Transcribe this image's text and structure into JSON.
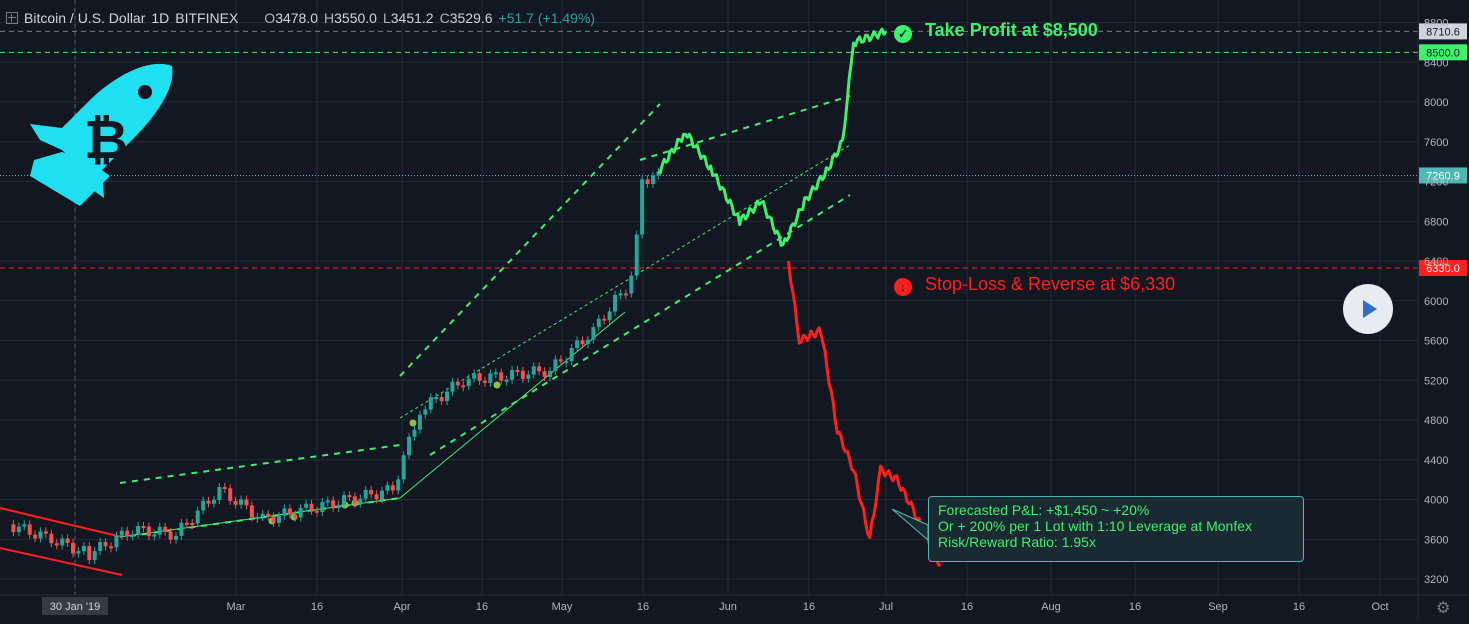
{
  "header": {
    "title": "Bitcoin / U.S. Dollar",
    "interval": "1D",
    "exchange": "BITFINEX",
    "o_label": "O",
    "o_value": "3478.0",
    "h_label": "H",
    "h_value": "3550.0",
    "l_label": "L",
    "l_value": "3451.2",
    "c_label": "C",
    "c_value": "3529.6",
    "change": "+51.7 (+1.49%)"
  },
  "annotations": {
    "take_profit": "Take Profit at $8,500",
    "stop_loss": "Stop-Loss & Reverse at $6,330",
    "forecast_lines": [
      "Forecasted P&L: +$1,450 ~ +20%",
      "Or + 200% per 1 Lot with 1:10 Leverage at Monfex",
      "Risk/Reward Ratio: 1.95x"
    ]
  },
  "colors": {
    "background": "#131722",
    "grid": "#252a37",
    "candle_up": "#26a69a",
    "candle_down": "#ef5350",
    "forecast_up": "#3ef06a",
    "forecast_down": "#ff1f1f",
    "tp_line": "#3ef06a",
    "sl_line": "#ff1f1f",
    "current_line": "#4fb8b4",
    "text_axis": "#b2b5be"
  },
  "icons": {
    "logo": "rocket-bitcoin-icon",
    "play": "play-icon",
    "settings": "gear-icon",
    "expand": "expand-icon",
    "check": "check-circle-icon",
    "down": "down-arrow-circle-icon"
  },
  "chart_data": {
    "type": "line",
    "title": "Bitcoin / U.S. Dollar",
    "ylim": [
      3200,
      8900
    ],
    "y_ticks": [
      3200,
      3600,
      4000,
      4400,
      4800,
      5200,
      5600,
      6000,
      6400,
      6800,
      7200,
      7600,
      8000,
      8400,
      8800
    ],
    "x_ticks": [
      "30 Jan '19",
      "Mar",
      "16",
      "Apr",
      "16",
      "May",
      "16",
      "Jun",
      "16",
      "Jul",
      "16",
      "Aug",
      "16",
      "Sep",
      "16",
      "Oct"
    ],
    "price_labels": [
      {
        "label": "8710.6",
        "value": 8710.6
      },
      {
        "label": "8500.0",
        "value": 8500.0
      },
      {
        "label": "7260.9",
        "value": 7260.9
      },
      {
        "label": "6330.0",
        "value": 6330.0
      }
    ],
    "series": [
      {
        "name": "",
        "kind": "price",
        "points": [
          [
            "2019-01-16",
            3750
          ],
          [
            "2019-01-24",
            3600
          ],
          [
            "2019-01-31",
            3450
          ],
          [
            "2019-02-08",
            3700
          ],
          [
            "2019-02-16",
            3650
          ],
          [
            "2019-02-24",
            4100
          ],
          [
            "2019-03-04",
            3800
          ],
          [
            "2019-03-12",
            3900
          ],
          [
            "2019-03-20",
            4000
          ],
          [
            "2019-03-28",
            4100
          ],
          [
            "2019-04-02",
            4900
          ],
          [
            "2019-04-10",
            5200
          ],
          [
            "2019-04-18",
            5250
          ],
          [
            "2019-04-26",
            5300
          ],
          [
            "2019-05-04",
            5700
          ],
          [
            "2019-05-08",
            6000
          ],
          [
            "2019-05-11",
            6200
          ],
          [
            "2019-05-13",
            7200
          ],
          [
            "2019-05-16",
            7300
          ]
        ]
      },
      {
        "name": "",
        "kind": "forecast_up",
        "points": [
          [
            "2019-05-16",
            7300
          ],
          [
            "2019-05-21",
            7700
          ],
          [
            "2019-05-26",
            7300
          ],
          [
            "2019-05-31",
            6800
          ],
          [
            "2019-06-04",
            7000
          ],
          [
            "2019-06-08",
            6550
          ],
          [
            "2019-06-12",
            7000
          ],
          [
            "2019-06-16",
            7300
          ],
          [
            "2019-06-19",
            7600
          ],
          [
            "2019-06-21",
            8600
          ],
          [
            "2019-06-27",
            8710
          ]
        ]
      },
      {
        "name": "",
        "kind": "forecast_down",
        "points": [
          [
            "2019-06-09",
            6400
          ],
          [
            "2019-06-11",
            5600
          ],
          [
            "2019-06-15",
            5700
          ],
          [
            "2019-06-18",
            4700
          ],
          [
            "2019-06-21",
            4300
          ],
          [
            "2019-06-24",
            3600
          ],
          [
            "2019-06-26",
            4300
          ],
          [
            "2019-06-29",
            4200
          ],
          [
            "2019-07-02",
            3900
          ],
          [
            "2019-07-05",
            3550
          ],
          [
            "2019-07-07",
            3330
          ]
        ]
      }
    ]
  }
}
